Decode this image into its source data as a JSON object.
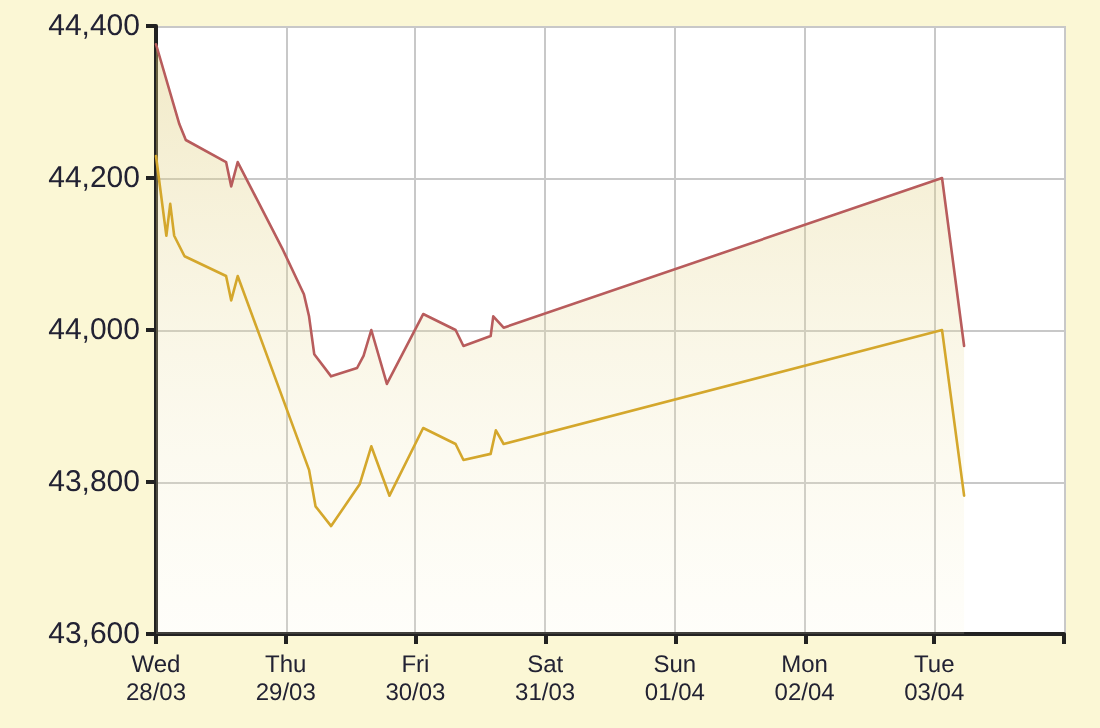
{
  "chart_data": {
    "type": "line",
    "xlim": [
      "--03-28",
      "--04-04"
    ],
    "xticks": [
      {
        "value": "--03-28",
        "label": "Wed\n28/03"
      },
      {
        "value": "--03-29",
        "label": "Thu\n29/03"
      },
      {
        "value": "--03-30",
        "label": "Fri\n30/03"
      },
      {
        "value": "--03-31",
        "label": "Sat\n31/03"
      },
      {
        "value": "--04-01",
        "label": "Sun\n01/04"
      },
      {
        "value": "--04-02",
        "label": "Mon\n02/04"
      },
      {
        "value": "--04-03",
        "label": "Tue\n03/04"
      },
      {
        "value": "--04-04",
        "label": null
      }
    ],
    "ylim": [
      43600,
      44400
    ],
    "yticks": [
      {
        "value": 43600,
        "label": "43,600"
      },
      {
        "value": 43800,
        "label": "43,800"
      },
      {
        "value": 44000,
        "label": "44,000"
      },
      {
        "value": 44200,
        "label": "44,200"
      },
      {
        "value": 44400,
        "label": "44,400"
      }
    ],
    "grid": true,
    "marker": "none",
    "line_style": "solid",
    "series": [
      {
        "type": "area",
        "color": "#b85c5c",
        "x": [
          "--03-28T00:00",
          "--03-28T04:19",
          "--03-28T05:31",
          "--03-28T12:58",
          "--03-28T13:55",
          "--03-28T15:07",
          "--03-28T23:31",
          "--03-29T03:22",
          "--03-29T04:19",
          "--03-29T05:17",
          "--03-29T08:24",
          "--03-29T13:12",
          "--03-29T14:24",
          "--03-29T15:50",
          "--03-29T18:43",
          "--03-30T01:26",
          "--03-30T07:26",
          "--03-30T08:53",
          "--03-30T13:55",
          "--03-30T14:24",
          "--03-30T16:19",
          "--04-03T01:26",
          "--04-03T05:31"
        ],
        "values": [
          44376,
          44271,
          44250,
          44221,
          44189,
          44221,
          44105,
          44047,
          44018,
          43968,
          43939,
          43950,
          43966,
          44000,
          43929,
          44021,
          44000,
          43979,
          43992,
          44018,
          44003,
          44200,
          43979
        ]
      },
      {
        "color": "#d4a72c",
        "x": [
          "--03-28T00:00",
          "--03-28T01:55",
          "--03-28T02:38",
          "--03-28T03:22",
          "--03-28T05:17",
          "--03-28T12:58",
          "--03-28T13:55",
          "--03-28T15:07",
          "--03-29T04:19",
          "--03-29T05:31",
          "--03-29T08:24",
          "--03-29T13:41",
          "--03-29T15:50",
          "--03-29T19:12",
          "--03-30T01:26",
          "--03-30T07:26",
          "--03-30T08:53",
          "--03-30T13:55",
          "--03-30T14:53",
          "--03-30T16:19",
          "--04-03T01:26",
          "--04-03T05:31"
        ],
        "values": [
          44229,
          44124,
          44166,
          44124,
          44097,
          44071,
          44039,
          44071,
          43816,
          43768,
          43742,
          43797,
          43847,
          43782,
          43871,
          43850,
          43829,
          43837,
          43868,
          43850,
          44000,
          43782
        ]
      }
    ]
  }
}
